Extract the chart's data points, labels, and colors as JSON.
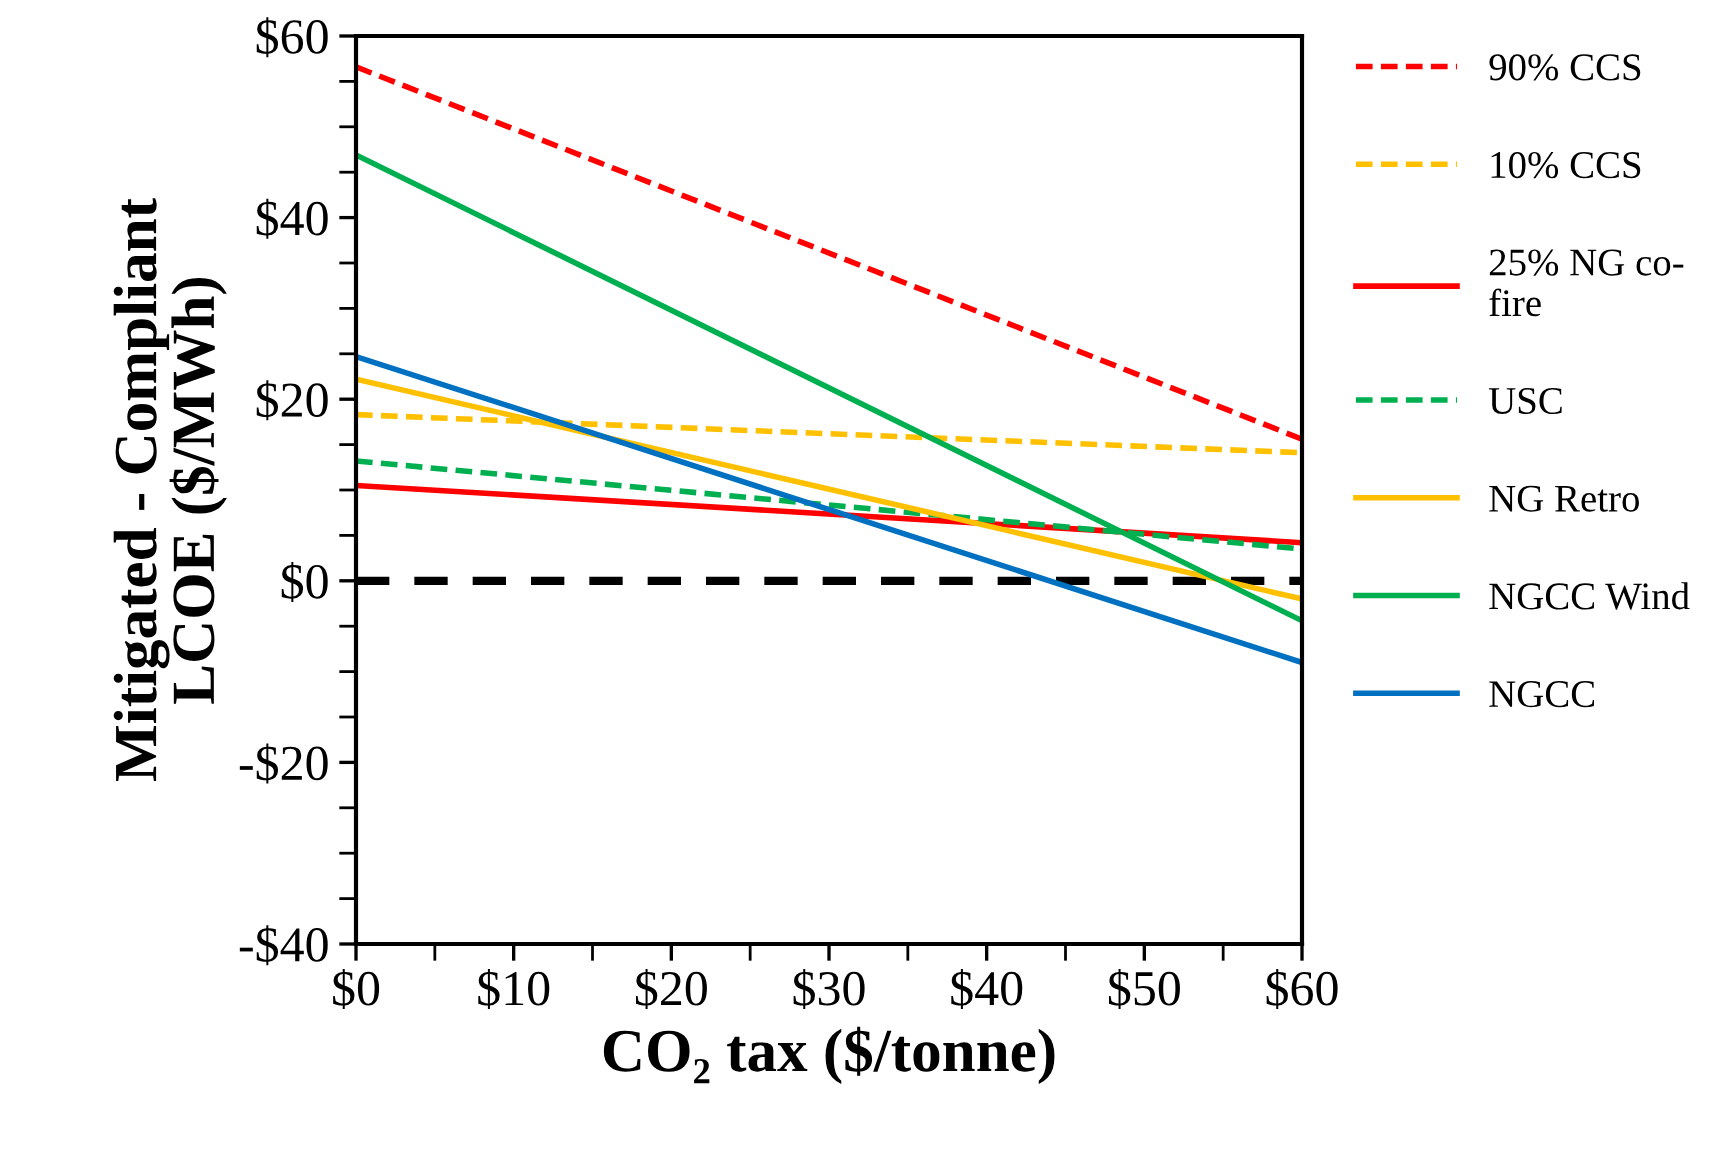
{
  "chart_data": {
    "type": "line",
    "xlabel": "CO₂ tax ($/tonne)",
    "ylabel": "Mitigated - Compliant\nLCOE ($/MWh)",
    "x": [
      0,
      60
    ],
    "series": [
      {
        "name": "90% CCS",
        "color": "#ff0000",
        "line_style": "dashed",
        "values": [
          56.6,
          15.6
        ]
      },
      {
        "name": "10% CCS",
        "color": "#ffc000",
        "line_style": "dashed",
        "values": [
          18.3,
          14.1
        ]
      },
      {
        "name": "25% NG co-\nfire",
        "color": "#ff0000",
        "line_style": "solid",
        "values": [
          10.5,
          4.2
        ]
      },
      {
        "name": "USC",
        "color": "#00b050",
        "line_style": "dashed",
        "values": [
          13.2,
          3.5
        ]
      },
      {
        "name": "NG Retro",
        "color": "#ffc000",
        "line_style": "solid",
        "values": [
          22.2,
          -2.0
        ]
      },
      {
        "name": "NGCC Wind",
        "color": "#00b050",
        "line_style": "solid",
        "values": [
          46.9,
          -4.4
        ]
      },
      {
        "name": "NGCC",
        "color": "#0070c0",
        "line_style": "solid",
        "values": [
          24.7,
          -9.0
        ]
      }
    ],
    "xlim": [
      0,
      60
    ],
    "xticks": [
      {
        "value": 0,
        "label": "$0"
      },
      {
        "value": 10,
        "label": "$10"
      },
      {
        "value": 20,
        "label": "$20"
      },
      {
        "value": 30,
        "label": "$30"
      },
      {
        "value": 40,
        "label": "$40"
      },
      {
        "value": 50,
        "label": "$50"
      },
      {
        "value": 60,
        "label": "$60"
      }
    ],
    "ylim": [
      -40,
      60
    ],
    "yticks": [
      {
        "value": -40,
        "label": "-$40"
      },
      {
        "value": -20,
        "label": "-$20"
      },
      {
        "value": 0,
        "label": "$0"
      },
      {
        "value": 20,
        "label": "$20"
      },
      {
        "value": 40,
        "label": "$40"
      },
      {
        "value": 60,
        "label": "$60"
      }
    ],
    "ref_lines": [
      {
        "axis": "y",
        "value": 0,
        "color": "#000000",
        "line_style": "dashed"
      }
    ],
    "grid": false,
    "legend": "right",
    "marker": "none"
  }
}
